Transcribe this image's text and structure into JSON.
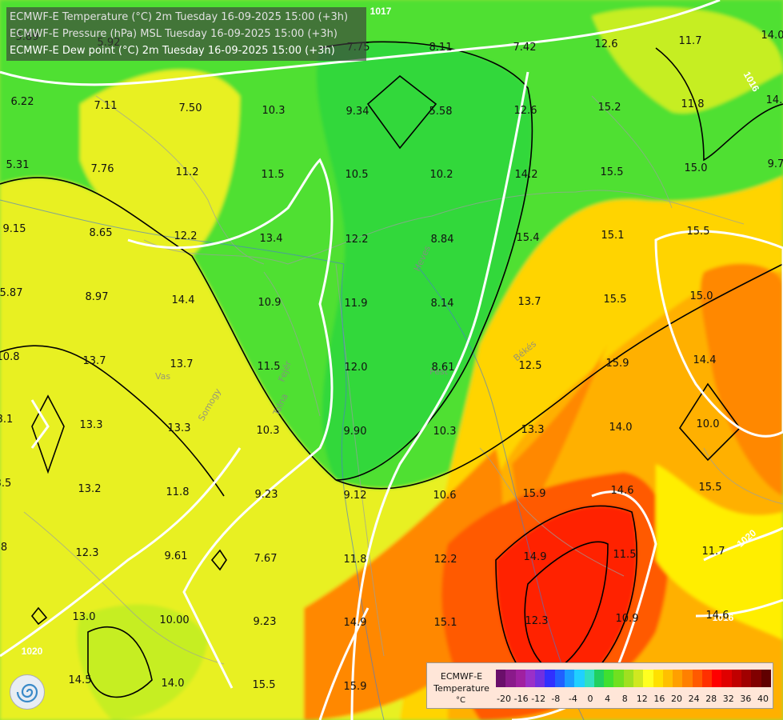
{
  "titles": [
    "ECMWF-E Temperature (°C) 2m Tuesday 16-09-2025 15:00 (+3h)",
    "ECMWF-E Pressure (hPa) MSL Tuesday 16-09-2025 15:00 (+3h)",
    "ECMWF-E Dew point (°C) 2m Tuesday 16-09-2025 15:00 (+3h)"
  ],
  "active_layer": "ECMWF-E Dew point (°C) 2m Tuesday 16-09-2025 15:00 (+3h)",
  "isobar_labels": [
    "1017",
    "1016",
    "1016",
    "1020",
    "1020"
  ],
  "dew_point_values": [
    "5.89",
    "5.92",
    "6.22",
    "7.11",
    "7.50",
    "10.3",
    "9.34",
    "5.58",
    "7.75",
    "8.11",
    "7.42",
    "12.6",
    "11.7",
    "14.0",
    "14.",
    "5.31",
    "7.76",
    "11.2",
    "11.5",
    "10.5",
    "10.2",
    "12.6",
    "15.2",
    "11.8",
    "9.7",
    "14.2",
    "15.5",
    "15.0",
    "9.15",
    "8.65",
    "12.2",
    "13.4",
    "12.2",
    "8.84",
    "15.4",
    "15.1",
    "15.5",
    "5.87",
    "8.97",
    "14.4",
    "10.9",
    "11.9",
    "8.14",
    "13.7",
    "15.5",
    "15.0",
    "10.8",
    "13.7",
    "13.7",
    "11.5",
    "12.0",
    "8.61",
    "12.5",
    "15.9",
    "14.4",
    "3.1",
    "13.3",
    "13.3",
    "10.3",
    "9.90",
    "10.3",
    "13.3",
    "14.0",
    "10.0",
    "3.5",
    "13.2",
    "11.8",
    "9.23",
    "9.12",
    "10.6",
    "15.9",
    "14.6",
    "15.5",
    ".8",
    "12.3",
    "9.61",
    "7.67",
    "11.8",
    "12.2",
    "14.9",
    "11.5",
    "11.7",
    "13.0",
    "10.00",
    "9.23",
    "14.9",
    "15.1",
    "12.3",
    "10.9",
    "14.6",
    "14.5",
    "14.0",
    "15.5",
    "15.9"
  ],
  "place_names": [
    "Vas",
    "Fejér",
    "Tolna",
    "Heves",
    "Pest",
    "Békés",
    "Somogy"
  ],
  "legend": {
    "title": "ECMWF-E Temperature",
    "unit": "°C",
    "ticks": [
      "-20",
      "-16",
      "-12",
      "-8",
      "-4",
      "0",
      "4",
      "8",
      "12",
      "16",
      "20",
      "24",
      "28",
      "32",
      "36",
      "40"
    ],
    "colors": [
      "#6a0f6a",
      "#8a1a8a",
      "#a020a0",
      "#9a30c8",
      "#7030e0",
      "#3030ff",
      "#2060ff",
      "#1a9cff",
      "#20d0ff",
      "#30e0c0",
      "#20d060",
      "#40e030",
      "#70e020",
      "#a0e020",
      "#d0e820",
      "#ffff20",
      "#ffe000",
      "#ffc000",
      "#ffa000",
      "#ff8000",
      "#ff5a00",
      "#ff3000",
      "#ff0000",
      "#e00000",
      "#c00000",
      "#a00000",
      "#800000",
      "#600000"
    ],
    "fill_colors": [
      "#30d83a",
      "#50e030",
      "#7ae028",
      "#9ae42a",
      "#c6ee20",
      "#e8f020",
      "#ffee00",
      "#ffd400",
      "#ffb000",
      "#ff8800",
      "#ff5a00",
      "#ff2400"
    ]
  }
}
